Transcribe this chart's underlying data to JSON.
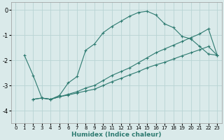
{
  "xlabel": "Humidex (Indice chaleur)",
  "xlim": [
    -0.5,
    23.5
  ],
  "ylim": [
    -4.5,
    0.3
  ],
  "yticks": [
    0,
    -1,
    -2,
    -3,
    -4
  ],
  "xticks": [
    0,
    1,
    2,
    3,
    4,
    5,
    6,
    7,
    8,
    9,
    10,
    11,
    12,
    13,
    14,
    15,
    16,
    17,
    18,
    19,
    20,
    21,
    22,
    23
  ],
  "bg_color": "#daeaea",
  "grid_color": "#b8d4d4",
  "line_color": "#2d7a70",
  "lines": [
    {
      "x": [
        1,
        2,
        3,
        4,
        5,
        6,
        7,
        8,
        9,
        10,
        11,
        12,
        13,
        14,
        15,
        16,
        17,
        18,
        19,
        20,
        21,
        22,
        23
      ],
      "y": [
        -1.8,
        -2.6,
        -3.5,
        -3.55,
        -3.4,
        -2.9,
        -2.65,
        -1.6,
        -1.35,
        -0.9,
        -0.65,
        -0.45,
        -0.25,
        -0.1,
        -0.05,
        -0.2,
        -0.55,
        -0.7,
        -1.05,
        -1.15,
        -1.45,
        -1.75,
        -1.8
      ]
    },
    {
      "x": [
        2,
        3,
        4,
        5,
        6,
        7,
        8,
        9,
        10,
        11,
        12,
        13,
        14,
        15,
        16,
        17,
        18,
        19,
        20,
        21,
        22,
        23
      ],
      "y": [
        -3.55,
        -3.5,
        -3.55,
        -3.45,
        -3.35,
        -3.25,
        -3.1,
        -3.0,
        -2.8,
        -2.6,
        -2.45,
        -2.3,
        -2.1,
        -1.9,
        -1.7,
        -1.55,
        -1.4,
        -1.25,
        -1.1,
        -0.95,
        -0.75,
        -1.8
      ]
    },
    {
      "x": [
        2,
        3,
        4,
        5,
        6,
        7,
        8,
        9,
        10,
        11,
        12,
        13,
        14,
        15,
        16,
        17,
        18,
        19,
        20,
        21,
        22,
        23
      ],
      "y": [
        -3.55,
        -3.5,
        -3.55,
        -3.45,
        -3.38,
        -3.3,
        -3.22,
        -3.15,
        -3.0,
        -2.85,
        -2.72,
        -2.58,
        -2.45,
        -2.3,
        -2.18,
        -2.08,
        -1.95,
        -1.82,
        -1.7,
        -1.58,
        -1.45,
        -1.8
      ]
    }
  ]
}
